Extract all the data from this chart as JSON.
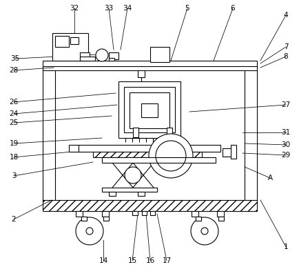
{
  "background_color": "#ffffff",
  "line_color": "#000000",
  "lw": 0.8,
  "label_fontsize": 7.5,
  "annotations": [
    [
      "1",
      415,
      358,
      378,
      290
    ],
    [
      "2",
      20,
      318,
      75,
      290
    ],
    [
      "3",
      20,
      255,
      135,
      235
    ],
    [
      "4",
      415,
      22,
      378,
      88
    ],
    [
      "5",
      272,
      12,
      248,
      88
    ],
    [
      "6",
      338,
      12,
      310,
      88
    ],
    [
      "7",
      415,
      68,
      378,
      92
    ],
    [
      "8",
      415,
      82,
      378,
      98
    ],
    [
      "14",
      150,
      378,
      150,
      348
    ],
    [
      "15",
      192,
      378,
      200,
      310
    ],
    [
      "16",
      218,
      378,
      212,
      310
    ],
    [
      "17",
      242,
      378,
      228,
      310
    ],
    [
      "18",
      20,
      228,
      125,
      218
    ],
    [
      "19",
      20,
      208,
      148,
      200
    ],
    [
      "24",
      20,
      165,
      170,
      152
    ],
    [
      "25",
      20,
      178,
      162,
      168
    ],
    [
      "26",
      20,
      148,
      168,
      135
    ],
    [
      "27",
      415,
      152,
      275,
      162
    ],
    [
      "28",
      20,
      102,
      78,
      98
    ],
    [
      "29",
      415,
      225,
      352,
      222
    ],
    [
      "30",
      415,
      210,
      355,
      208
    ],
    [
      "31",
      415,
      192,
      352,
      192
    ],
    [
      "32",
      108,
      12,
      108,
      55
    ],
    [
      "33",
      158,
      12,
      165,
      72
    ],
    [
      "34",
      185,
      12,
      175,
      72
    ],
    [
      "35",
      22,
      85,
      145,
      79
    ],
    [
      "A",
      392,
      258,
      355,
      242
    ]
  ]
}
